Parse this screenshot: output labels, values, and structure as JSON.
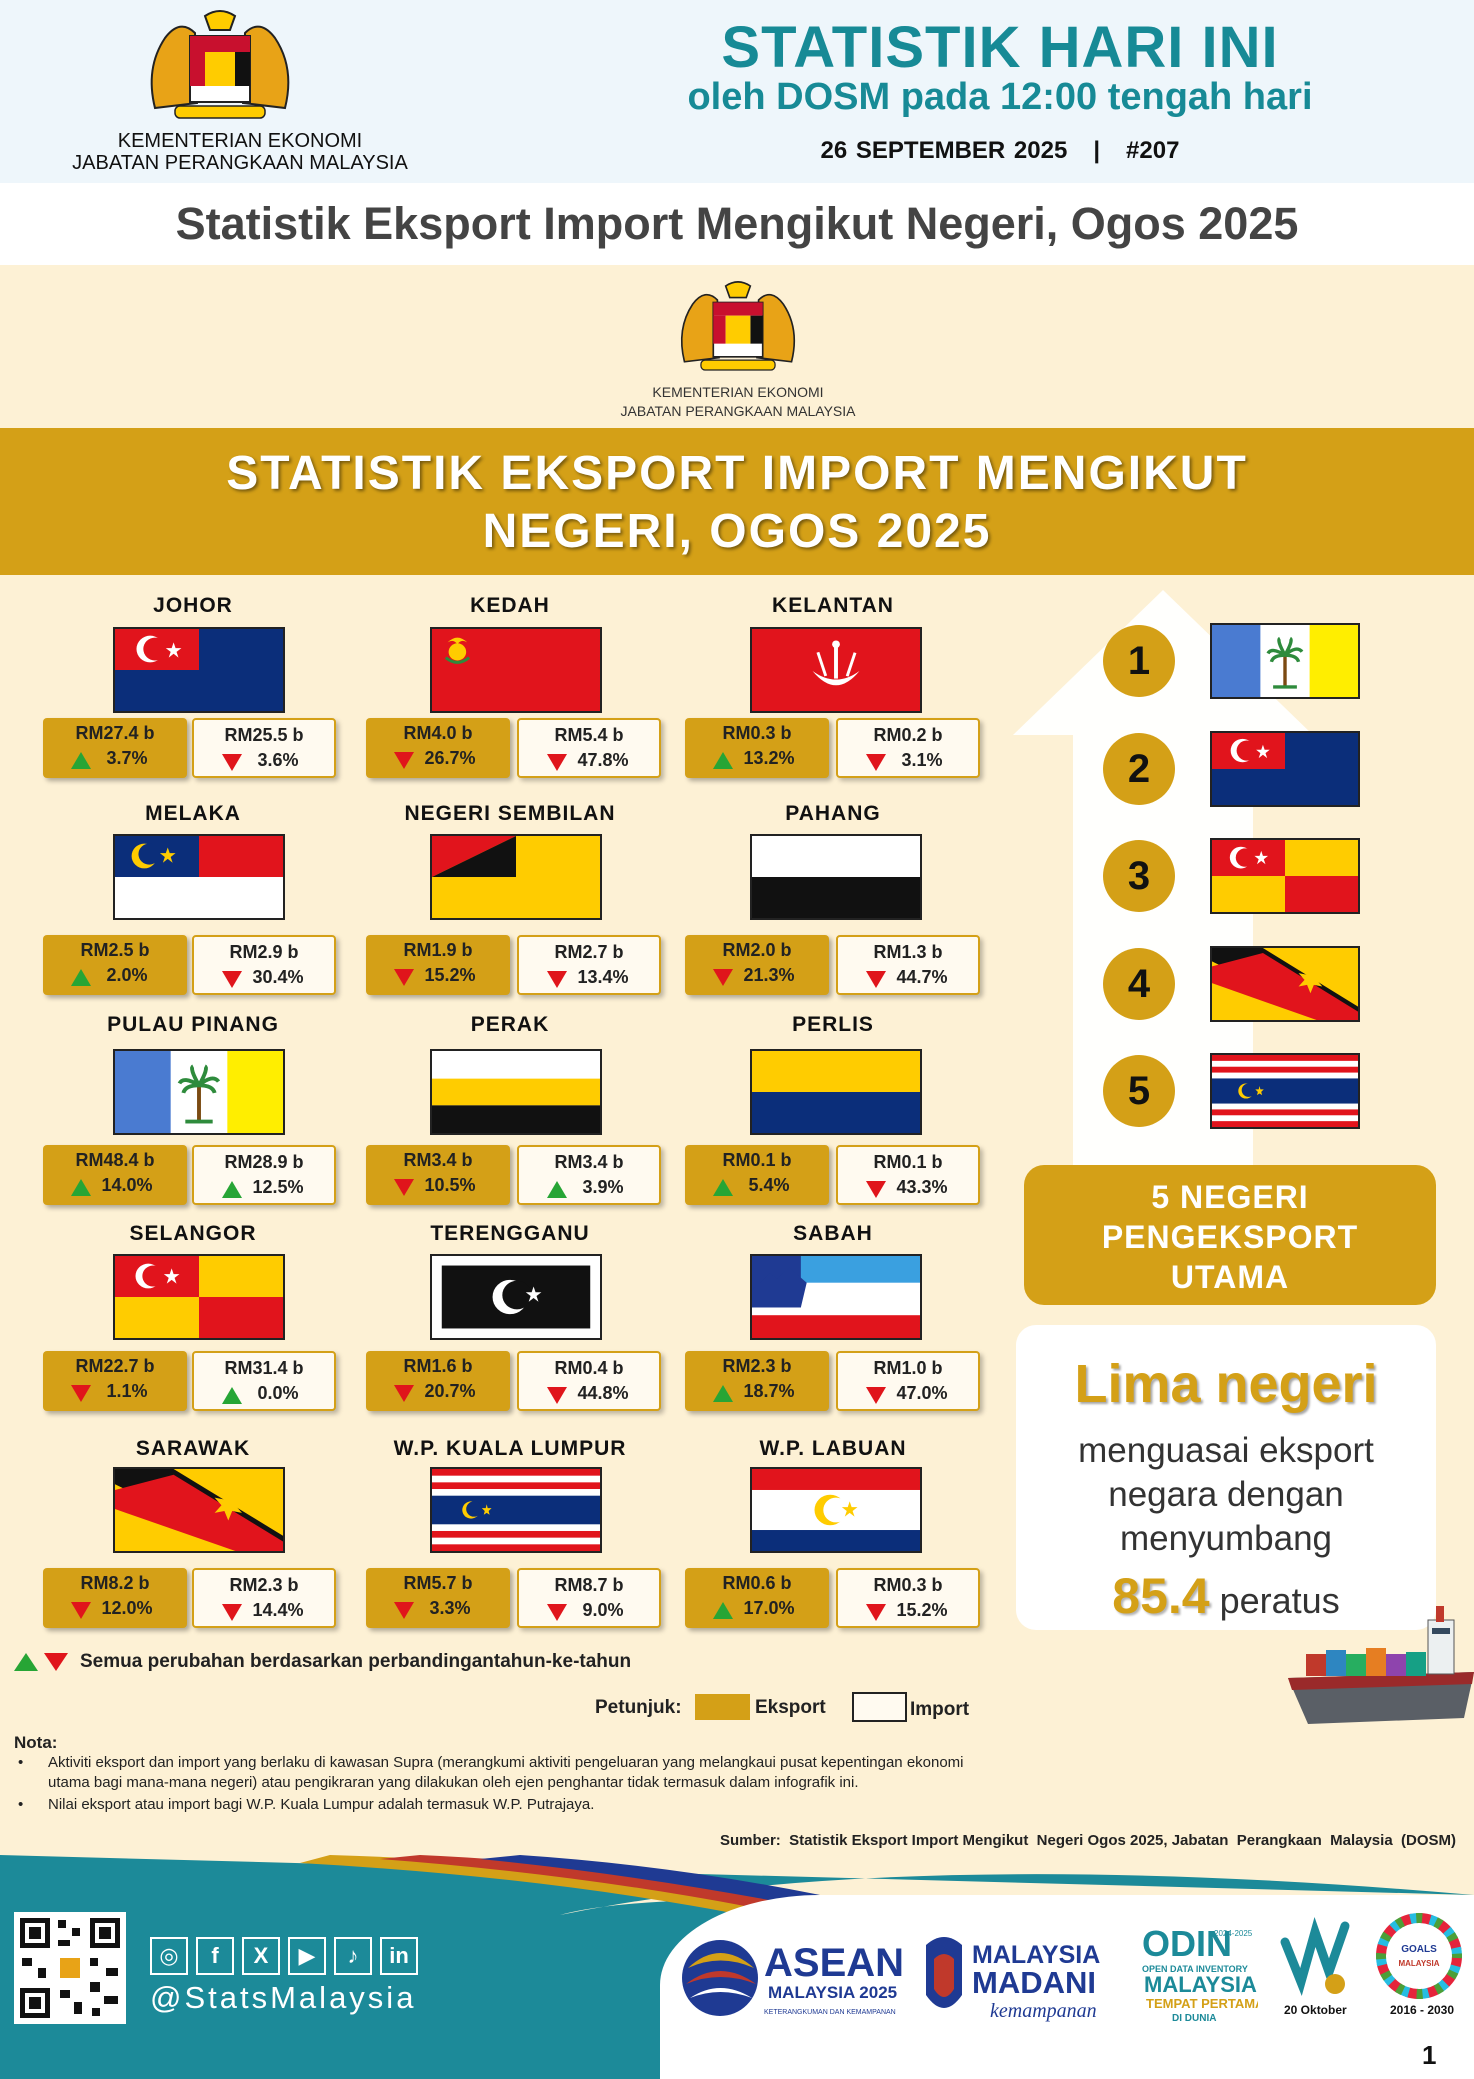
{
  "header": {
    "ministry_line1": "KEMENTERIAN EKONOMI",
    "ministry_line2": "JABATAN PERANGKAAN MALAYSIA",
    "title": "STATISTIK HARI INI",
    "subtitle": "oleh DOSM pada 12:00 tengah hari",
    "date_line": "26 SEPTEMBER 2025   |   #207"
  },
  "page_title": "Statistik Eksport Import Mengikut Negeri, Ogos 2025",
  "infographic": {
    "ministry_line1": "KEMENTERIAN EKONOMI",
    "ministry_line2": "JABATAN PERANGKAAN MALAYSIA",
    "banner_line1": "STATISTIK EKSPORT IMPORT MENGIKUT",
    "banner_line2": "NEGERI, OGOS 2025"
  },
  "states": [
    {
      "name": "JOHOR",
      "flag": "johor",
      "export": "RM27.4 b",
      "export_change": "3.7%",
      "export_dir": "up",
      "import": "RM25.5 b",
      "import_change": "3.6%",
      "import_dir": "down"
    },
    {
      "name": "KEDAH",
      "flag": "kedah",
      "export": "RM4.0 b",
      "export_change": "26.7%",
      "export_dir": "down",
      "import": "RM5.4 b",
      "import_change": "47.8%",
      "import_dir": "down"
    },
    {
      "name": "KELANTAN",
      "flag": "kelantan",
      "export": "RM0.3 b",
      "export_change": "13.2%",
      "export_dir": "up",
      "import": "RM0.2 b",
      "import_change": "3.1%",
      "import_dir": "down"
    },
    {
      "name": "MELAKA",
      "flag": "melaka",
      "export": "RM2.5 b",
      "export_change": "2.0%",
      "export_dir": "up",
      "import": "RM2.9  b",
      "import_change": "30.4%",
      "import_dir": "down"
    },
    {
      "name": "NEGERI SEMBILAN",
      "flag": "nsembilan",
      "export": "RM1.9 b",
      "export_change": "15.2%",
      "export_dir": "down",
      "import": "RM2.7 b",
      "import_change": "13.4%",
      "import_dir": "down"
    },
    {
      "name": "PAHANG",
      "flag": "pahang",
      "export": "RM2.0 b",
      "export_change": "21.3%",
      "export_dir": "down",
      "import": "RM1.3 b",
      "import_change": "44.7%",
      "import_dir": "down"
    },
    {
      "name": "PULAU PINANG",
      "flag": "penang",
      "export": "RM48.4 b",
      "export_change": "14.0%",
      "export_dir": "up",
      "import": "RM28.9 b",
      "import_change": "12.5%",
      "import_dir": "up"
    },
    {
      "name": "PERAK",
      "flag": "perak",
      "export": "RM3.4 b",
      "export_change": "10.5%",
      "export_dir": "down",
      "import": "RM3.4 b",
      "import_change": "3.9%",
      "import_dir": "up"
    },
    {
      "name": "PERLIS",
      "flag": "perlis",
      "export": "RM0.1 b",
      "export_change": "5.4%",
      "export_dir": "up",
      "import": "RM0.1 b",
      "import_change": "43.3%",
      "import_dir": "down"
    },
    {
      "name": "SELANGOR",
      "flag": "selangor",
      "export": "RM22.7 b",
      "export_change": "1.1%",
      "export_dir": "down",
      "import": "RM31.4 b",
      "import_change": "0.0%",
      "import_dir": "up"
    },
    {
      "name": "TERENGGANU",
      "flag": "terengganu",
      "export": "RM1.6 b",
      "export_change": "20.7%",
      "export_dir": "down",
      "import": "RM0.4 b",
      "import_change": "44.8%",
      "import_dir": "down"
    },
    {
      "name": "SABAH",
      "flag": "sabah",
      "export": "RM2.3 b",
      "export_change": "18.7%",
      "export_dir": "up",
      "import": "RM1.0 b",
      "import_change": "47.0%",
      "import_dir": "down"
    },
    {
      "name": "SARAWAK",
      "flag": "sarawak",
      "export": "RM8.2 b",
      "export_change": "12.0%",
      "export_dir": "down",
      "import": "RM2.3 b",
      "import_change": "14.4%",
      "import_dir": "down"
    },
    {
      "name": "W.P. KUALA LUMPUR",
      "flag": "kl",
      "export": "RM5.7 b",
      "export_change": "3.3%",
      "export_dir": "down",
      "import": "RM8.7 b",
      "import_change": "9.0%",
      "import_dir": "down"
    },
    {
      "name": "W.P. LABUAN",
      "flag": "labuan",
      "export": "RM0.6 b",
      "export_change": "17.0%",
      "export_dir": "up",
      "import": "RM0.3 b",
      "import_change": "15.2%",
      "import_dir": "down"
    }
  ],
  "ranking": {
    "items": [
      {
        "rank": "1",
        "flag": "penang"
      },
      {
        "rank": "2",
        "flag": "johor"
      },
      {
        "rank": "3",
        "flag": "selangor"
      },
      {
        "rank": "4",
        "flag": "sarawak"
      },
      {
        "rank": "5",
        "flag": "kl"
      }
    ],
    "label_line1": "5 NEGERI",
    "label_line2": "PENGEKSPORT",
    "label_line3": "UTAMA",
    "headline": "Lima negeri",
    "body_line1": "menguasai eksport",
    "body_line2": "negara dengan",
    "body_line3": "menyumbang",
    "percent_value": "85.4",
    "percent_word": "peratus"
  },
  "notes": {
    "change_note": "Semua perubahan berdasarkan perbandingantahun-ke-tahun",
    "legend_label": "Petunjuk:",
    "legend_export": "Eksport",
    "legend_import": "Import",
    "nota_title": "Nota:",
    "nota_1a": "Aktiviti eksport dan import yang berlaku di kawasan Supra (merangkumi aktiviti pengeluaran yang melangkaui pusat kepentingan ekonomi",
    "nota_1b": "utama bagi mana-mana  negeri) atau pengikraran yang dilakukan oleh ejen penghantar tidak termasuk dalam infografik ini.",
    "nota_2": "Nilai eksport atau import bagi W.P. Kuala Lumpur adalah termasuk W.P. Putrajaya.",
    "source": "Sumber:  Statistik Eksport Import Mengikut  Negeri Ogos 2025, Jabatan  Perangkaan  Malaysia  (DOSM)"
  },
  "footer": {
    "handle": "@StatsMalaysia",
    "asean_word": "ASEAN",
    "asean_sub": "MALAYSIA 2025",
    "asean_tag": "KETERANGKUMAN DAN KEMAMPANAN",
    "madani_line1": "MALAYSIA",
    "madani_line2": "MADANI",
    "madani_tag": "kemampanan",
    "odin_word": "ODIN",
    "odin_years": "2024-2025",
    "odin_line1": "OPEN DATA INVENTORY",
    "odin_line2": "MALAYSIA",
    "odin_line3": "TEMPAT PERTAMA",
    "odin_line4": "DI DUNIA",
    "sgd_date": "20 Oktober",
    "sdg_years": "2016 - 2030",
    "page_number": "1"
  },
  "colors": {
    "teal": "#178a96",
    "gold": "#d4a017",
    "panel_bg": "#fdf1d5",
    "up": "#27a535",
    "down": "#e0151b"
  }
}
